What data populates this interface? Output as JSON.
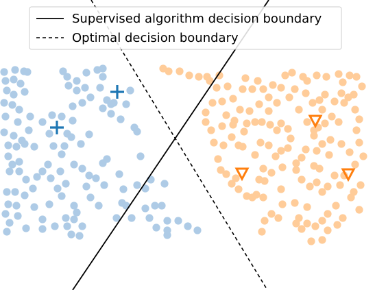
{
  "legend": {
    "solid_label": "Supervised algorithm decision boundary",
    "dashed_label": "Optimal decision boundary"
  },
  "colors": {
    "class_a": "#aecbe6",
    "class_b": "#ffcc99",
    "class_a_marker": "#1f77b4",
    "class_b_marker": "#ff7f0e",
    "boundary": "#000000"
  },
  "icons": {
    "labeled_class_a": "plus-icon",
    "labeled_class_b": "triangle-down-icon"
  }
}
